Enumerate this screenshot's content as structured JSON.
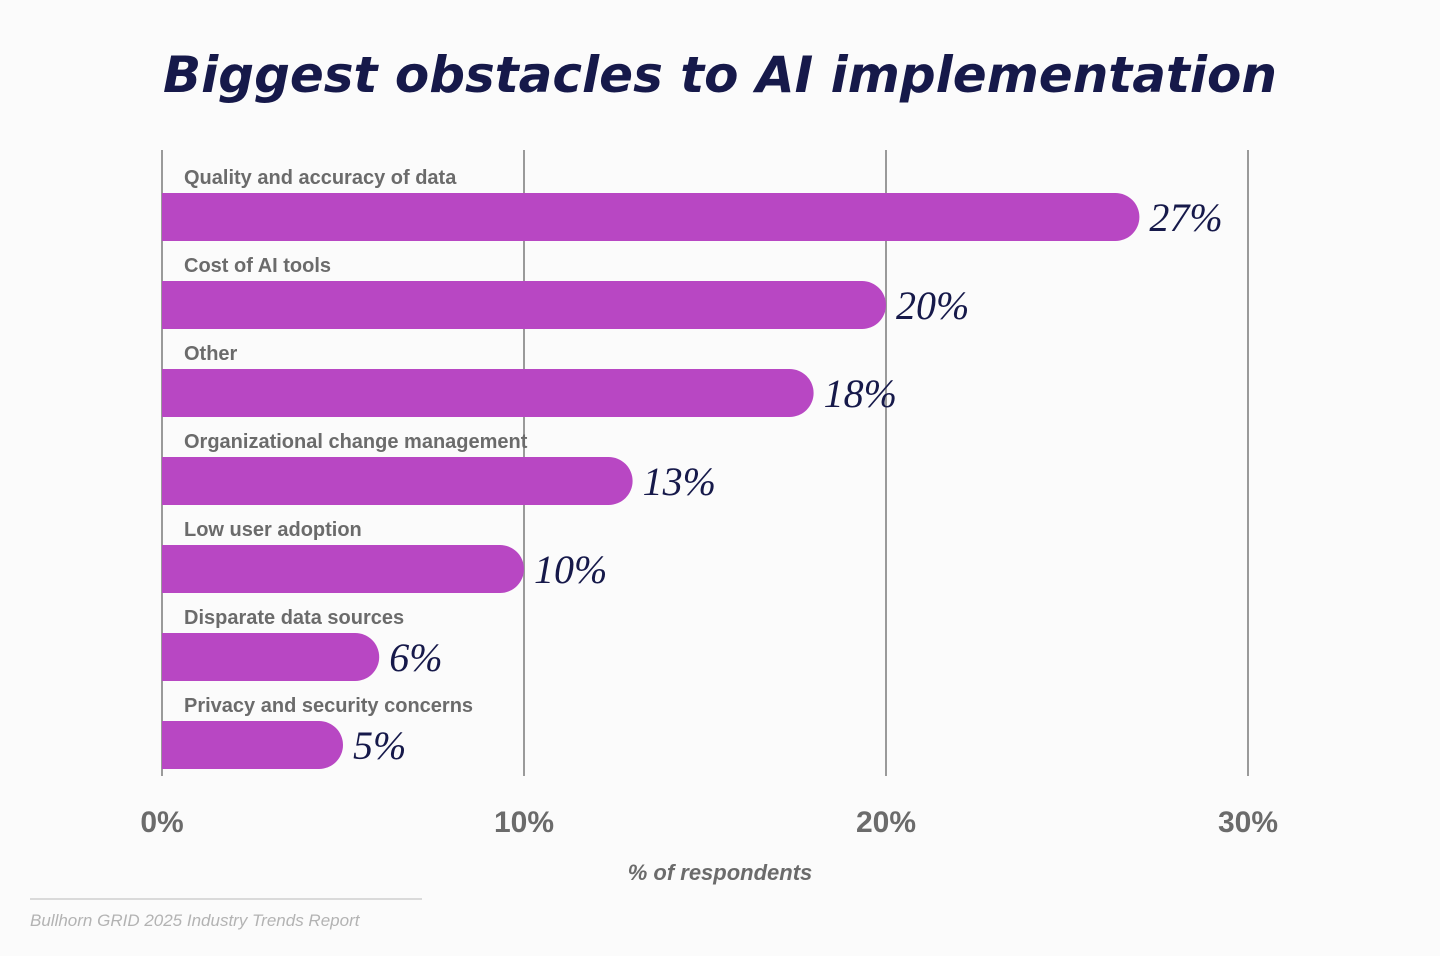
{
  "chart_data": {
    "type": "bar",
    "orientation": "horizontal",
    "title": "Biggest obstacles to AI implementation",
    "categories": [
      "Quality and accuracy of data",
      "Cost of AI tools",
      "Other",
      "Organizational change management",
      "Low user adoption",
      "Disparate data sources",
      "Privacy and security concerns"
    ],
    "values": [
      27,
      20,
      18,
      13,
      10,
      6,
      5
    ],
    "value_labels": [
      "27%",
      "20%",
      "18%",
      "13%",
      "10%",
      "6%",
      "5%"
    ],
    "xlabel": "% of respondents",
    "xlim": [
      0,
      30
    ],
    "xticks": [
      0,
      10,
      20,
      30
    ],
    "xtick_labels": [
      "0%",
      "10%",
      "20%",
      "30%"
    ],
    "grid": "vertical",
    "source": "Bullhorn GRID 2025 Industry Trends Report"
  },
  "colors": {
    "bar": "#b847c3",
    "title": "#16194a",
    "value_text": "#16194a",
    "label_text": "#6b6b6b",
    "gridline": "#9a9a9a",
    "source_text": "#b3b3b3",
    "background": "#fbfbfb"
  }
}
